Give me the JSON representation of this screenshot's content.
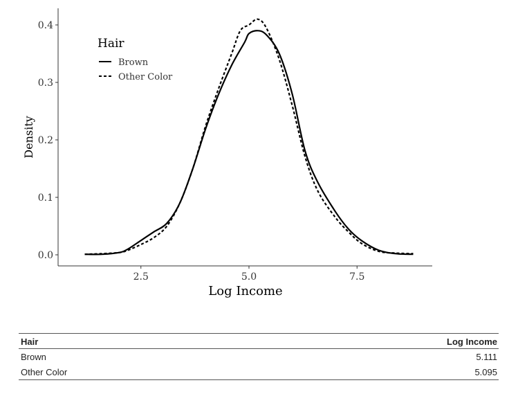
{
  "chart_data": {
    "type": "line",
    "title": "",
    "xlabel": "Log Income",
    "ylabel": "Density",
    "xlim": [
      1.0,
      9.0
    ],
    "ylim": [
      0.0,
      0.4
    ],
    "x_ticks": [
      2.5,
      5.0,
      7.5
    ],
    "x_tick_labels": [
      "2.5",
      "5.0",
      "7.5"
    ],
    "y_ticks": [
      0.0,
      0.1,
      0.2,
      0.3,
      0.4
    ],
    "y_tick_labels": [
      "0.0",
      "0.1",
      "0.2",
      "0.3",
      "0.4"
    ],
    "grid": false,
    "legend": {
      "title": "Hair",
      "placement": "top-left"
    },
    "series": [
      {
        "name": "Brown",
        "line_style": "solid",
        "x": [
          1.2,
          1.6,
          2.0,
          2.2,
          2.5,
          2.8,
          3.1,
          3.4,
          3.7,
          4.0,
          4.3,
          4.6,
          4.9,
          5.0,
          5.2,
          5.4,
          5.7,
          6.0,
          6.3,
          6.6,
          7.0,
          7.3,
          7.6,
          8.0,
          8.4,
          8.8
        ],
        "y": [
          0.001,
          0.001,
          0.004,
          0.01,
          0.025,
          0.04,
          0.055,
          0.09,
          0.15,
          0.22,
          0.28,
          0.33,
          0.37,
          0.385,
          0.39,
          0.383,
          0.35,
          0.28,
          0.18,
          0.125,
          0.075,
          0.045,
          0.025,
          0.008,
          0.002,
          0.001
        ]
      },
      {
        "name": "Other Color",
        "line_style": "dashed",
        "x": [
          1.2,
          1.6,
          2.0,
          2.2,
          2.5,
          2.8,
          3.1,
          3.4,
          3.7,
          4.0,
          4.3,
          4.6,
          4.8,
          5.0,
          5.2,
          5.4,
          5.7,
          6.0,
          6.3,
          6.6,
          7.0,
          7.3,
          7.6,
          8.0,
          8.4,
          8.8
        ],
        "y": [
          0.001,
          0.002,
          0.004,
          0.008,
          0.018,
          0.03,
          0.05,
          0.09,
          0.15,
          0.225,
          0.29,
          0.35,
          0.39,
          0.4,
          0.41,
          0.395,
          0.34,
          0.26,
          0.17,
          0.11,
          0.065,
          0.04,
          0.02,
          0.006,
          0.003,
          0.002
        ]
      }
    ]
  },
  "table": {
    "headers": [
      "Hair",
      "Log Income"
    ],
    "rows": [
      [
        "Brown",
        "5.111"
      ],
      [
        "Other Color",
        "5.095"
      ]
    ]
  }
}
